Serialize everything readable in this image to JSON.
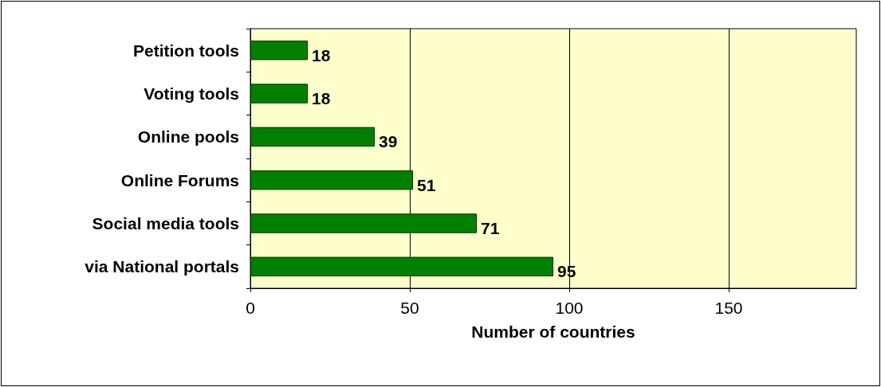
{
  "chart_data": {
    "type": "bar",
    "orientation": "horizontal",
    "xlabel": "Number of countries",
    "categories": [
      "Petition tools",
      "Voting tools",
      "Online pools",
      "Online Forums",
      "Social media tools",
      "via National portals"
    ],
    "values": [
      18,
      18,
      39,
      51,
      71,
      95
    ],
    "color": "#008000",
    "xlim": [
      0,
      190
    ],
    "xticks": [
      0,
      50,
      100,
      150
    ],
    "grid": "x",
    "data_labels": true
  }
}
